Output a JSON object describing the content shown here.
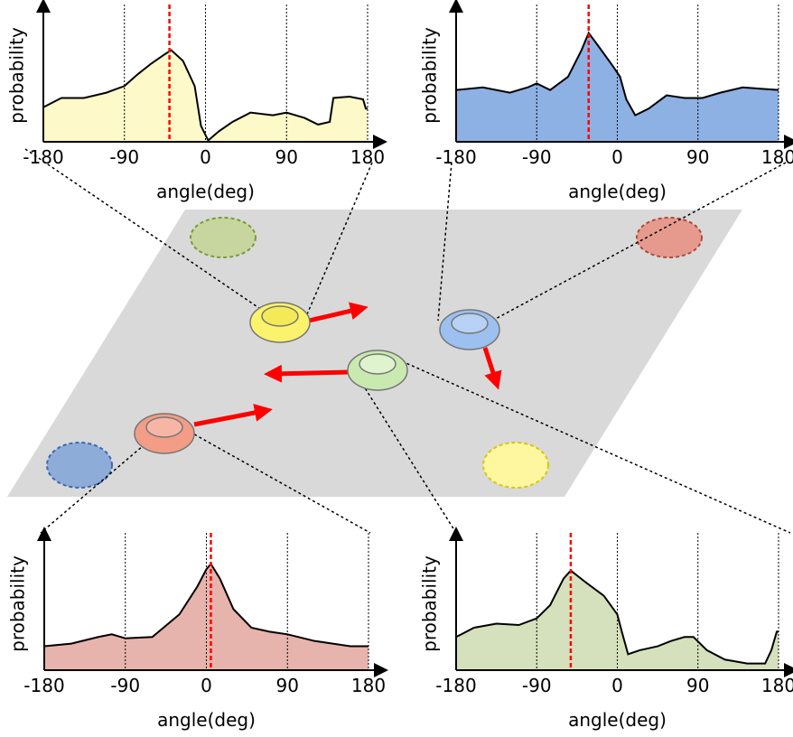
{
  "chart_data": [
    {
      "type": "area",
      "xlabel": "angle(deg)",
      "ylabel": "probability",
      "color": "#000000",
      "fill": "#fdf9c8",
      "x": [
        -180,
        -160,
        -135,
        -110,
        -90,
        -75,
        -60,
        -45,
        -38,
        -25,
        -12,
        -5,
        3,
        15,
        30,
        50,
        75,
        90,
        110,
        125,
        138,
        142,
        160,
        175,
        178,
        180
      ],
      "values": [
        0.26,
        0.33,
        0.33,
        0.37,
        0.42,
        0.51,
        0.59,
        0.66,
        0.69,
        0.61,
        0.42,
        0.12,
        0.01,
        0.08,
        0.15,
        0.22,
        0.2,
        0.22,
        0.18,
        0.13,
        0.15,
        0.33,
        0.34,
        0.32,
        0.25,
        0.25
      ],
      "marker": -40,
      "xlim": [
        -180,
        180
      ],
      "ylim": [
        0,
        1
      ],
      "xticks": [
        -180,
        -90,
        0,
        90,
        180
      ],
      "grid": true
    },
    {
      "type": "area",
      "xlabel": "angle(deg)",
      "ylabel": "probability",
      "color": "#000000",
      "fill": "#8eb1e4",
      "x": [
        -180,
        -150,
        -120,
        -100,
        -90,
        -75,
        -55,
        -40,
        -32,
        -20,
        -5,
        3,
        10,
        20,
        35,
        55,
        75,
        95,
        115,
        140,
        160,
        180
      ],
      "values": [
        0.39,
        0.41,
        0.37,
        0.41,
        0.44,
        0.39,
        0.49,
        0.69,
        0.82,
        0.71,
        0.57,
        0.49,
        0.32,
        0.2,
        0.25,
        0.35,
        0.33,
        0.33,
        0.37,
        0.41,
        0.4,
        0.39
      ],
      "marker": -32,
      "xlim": [
        -180,
        180
      ],
      "ylim": [
        0,
        1
      ],
      "xticks": [
        -180,
        -90,
        0,
        90,
        180
      ],
      "grid": true
    },
    {
      "type": "area",
      "xlabel": "angle(deg)",
      "ylabel": "probability",
      "color": "#000000",
      "fill": "#e6b4ac",
      "x": [
        -180,
        -150,
        -120,
        -105,
        -90,
        -60,
        -30,
        -10,
        0,
        5,
        15,
        30,
        50,
        70,
        90,
        120,
        160,
        180
      ],
      "values": [
        0.18,
        0.2,
        0.25,
        0.27,
        0.24,
        0.25,
        0.42,
        0.63,
        0.76,
        0.8,
        0.69,
        0.46,
        0.32,
        0.29,
        0.27,
        0.22,
        0.18,
        0.18
      ],
      "marker": 5,
      "xlim": [
        -180,
        180
      ],
      "ylim": [
        0,
        1
      ],
      "xticks": [
        -180,
        -90,
        0,
        90,
        180
      ],
      "grid": true
    },
    {
      "type": "area",
      "xlabel": "angle(deg)",
      "ylabel": "probability",
      "color": "#000000",
      "fill": "#d5e0bc",
      "x": [
        -180,
        -160,
        -135,
        -110,
        -90,
        -75,
        -60,
        -52,
        -35,
        -15,
        0,
        5,
        12,
        25,
        45,
        60,
        75,
        85,
        100,
        120,
        145,
        165,
        172,
        178,
        180
      ],
      "values": [
        0.25,
        0.32,
        0.35,
        0.34,
        0.39,
        0.49,
        0.69,
        0.75,
        0.66,
        0.56,
        0.42,
        0.29,
        0.12,
        0.15,
        0.18,
        0.22,
        0.25,
        0.25,
        0.15,
        0.08,
        0.05,
        0.05,
        0.15,
        0.29,
        0.29
      ],
      "marker": -52,
      "xlim": [
        -180,
        180
      ],
      "ylim": [
        0,
        1
      ],
      "xticks": [
        -180,
        -90,
        0,
        90,
        180
      ],
      "grid": true
    }
  ]
}
